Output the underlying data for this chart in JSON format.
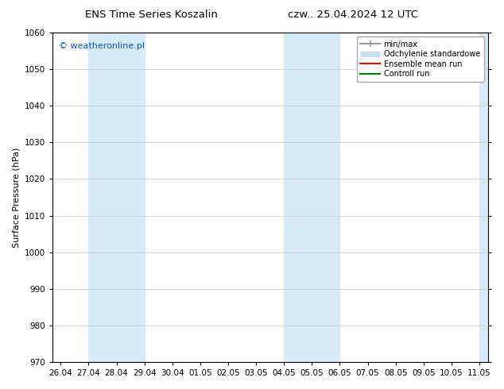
{
  "title_left": "ENS Time Series Koszalin",
  "title_right": "czw.. 25.04.2024 12 UTC",
  "ylabel": "Surface Pressure (hPa)",
  "ylim": [
    970,
    1060
  ],
  "yticks": [
    970,
    980,
    990,
    1000,
    1010,
    1020,
    1030,
    1040,
    1050,
    1060
  ],
  "x_tick_labels": [
    "26.04",
    "27.04",
    "28.04",
    "29.04",
    "30.04",
    "01.05",
    "02.05",
    "03.05",
    "04.05",
    "05.05",
    "06.05",
    "07.05",
    "08.05",
    "09.05",
    "10.05",
    "11.05"
  ],
  "watermark": "© weatheronline.pl",
  "watermark_color": "#0055cc",
  "background_color": "#ffffff",
  "plot_bg_color": "#ffffff",
  "shaded_regions": [
    {
      "xstart": 1,
      "xend": 3,
      "color": "#d6eaf8"
    },
    {
      "xstart": 8,
      "xend": 10,
      "color": "#d6eaf8"
    },
    {
      "xstart": 15,
      "xend": 15.7,
      "color": "#d6eaf8"
    }
  ],
  "legend_entries": [
    {
      "label": "min/max",
      "color": "#999999",
      "lw": 1.5,
      "style": "solid"
    },
    {
      "label": "Odchylenie standardowe",
      "color": "#c8dff0",
      "lw": 5,
      "style": "solid"
    },
    {
      "label": "Ensemble mean run",
      "color": "#ff0000",
      "lw": 1.5,
      "style": "solid"
    },
    {
      "label": "Controll run",
      "color": "#008000",
      "lw": 1.5,
      "style": "solid"
    }
  ],
  "grid_color": "#c8c8c8",
  "tick_color": "#000000",
  "border_color": "#000000",
  "title_fontsize": 9.5,
  "ylabel_fontsize": 8,
  "tick_fontsize": 7.5,
  "watermark_fontsize": 8,
  "legend_fontsize": 7
}
